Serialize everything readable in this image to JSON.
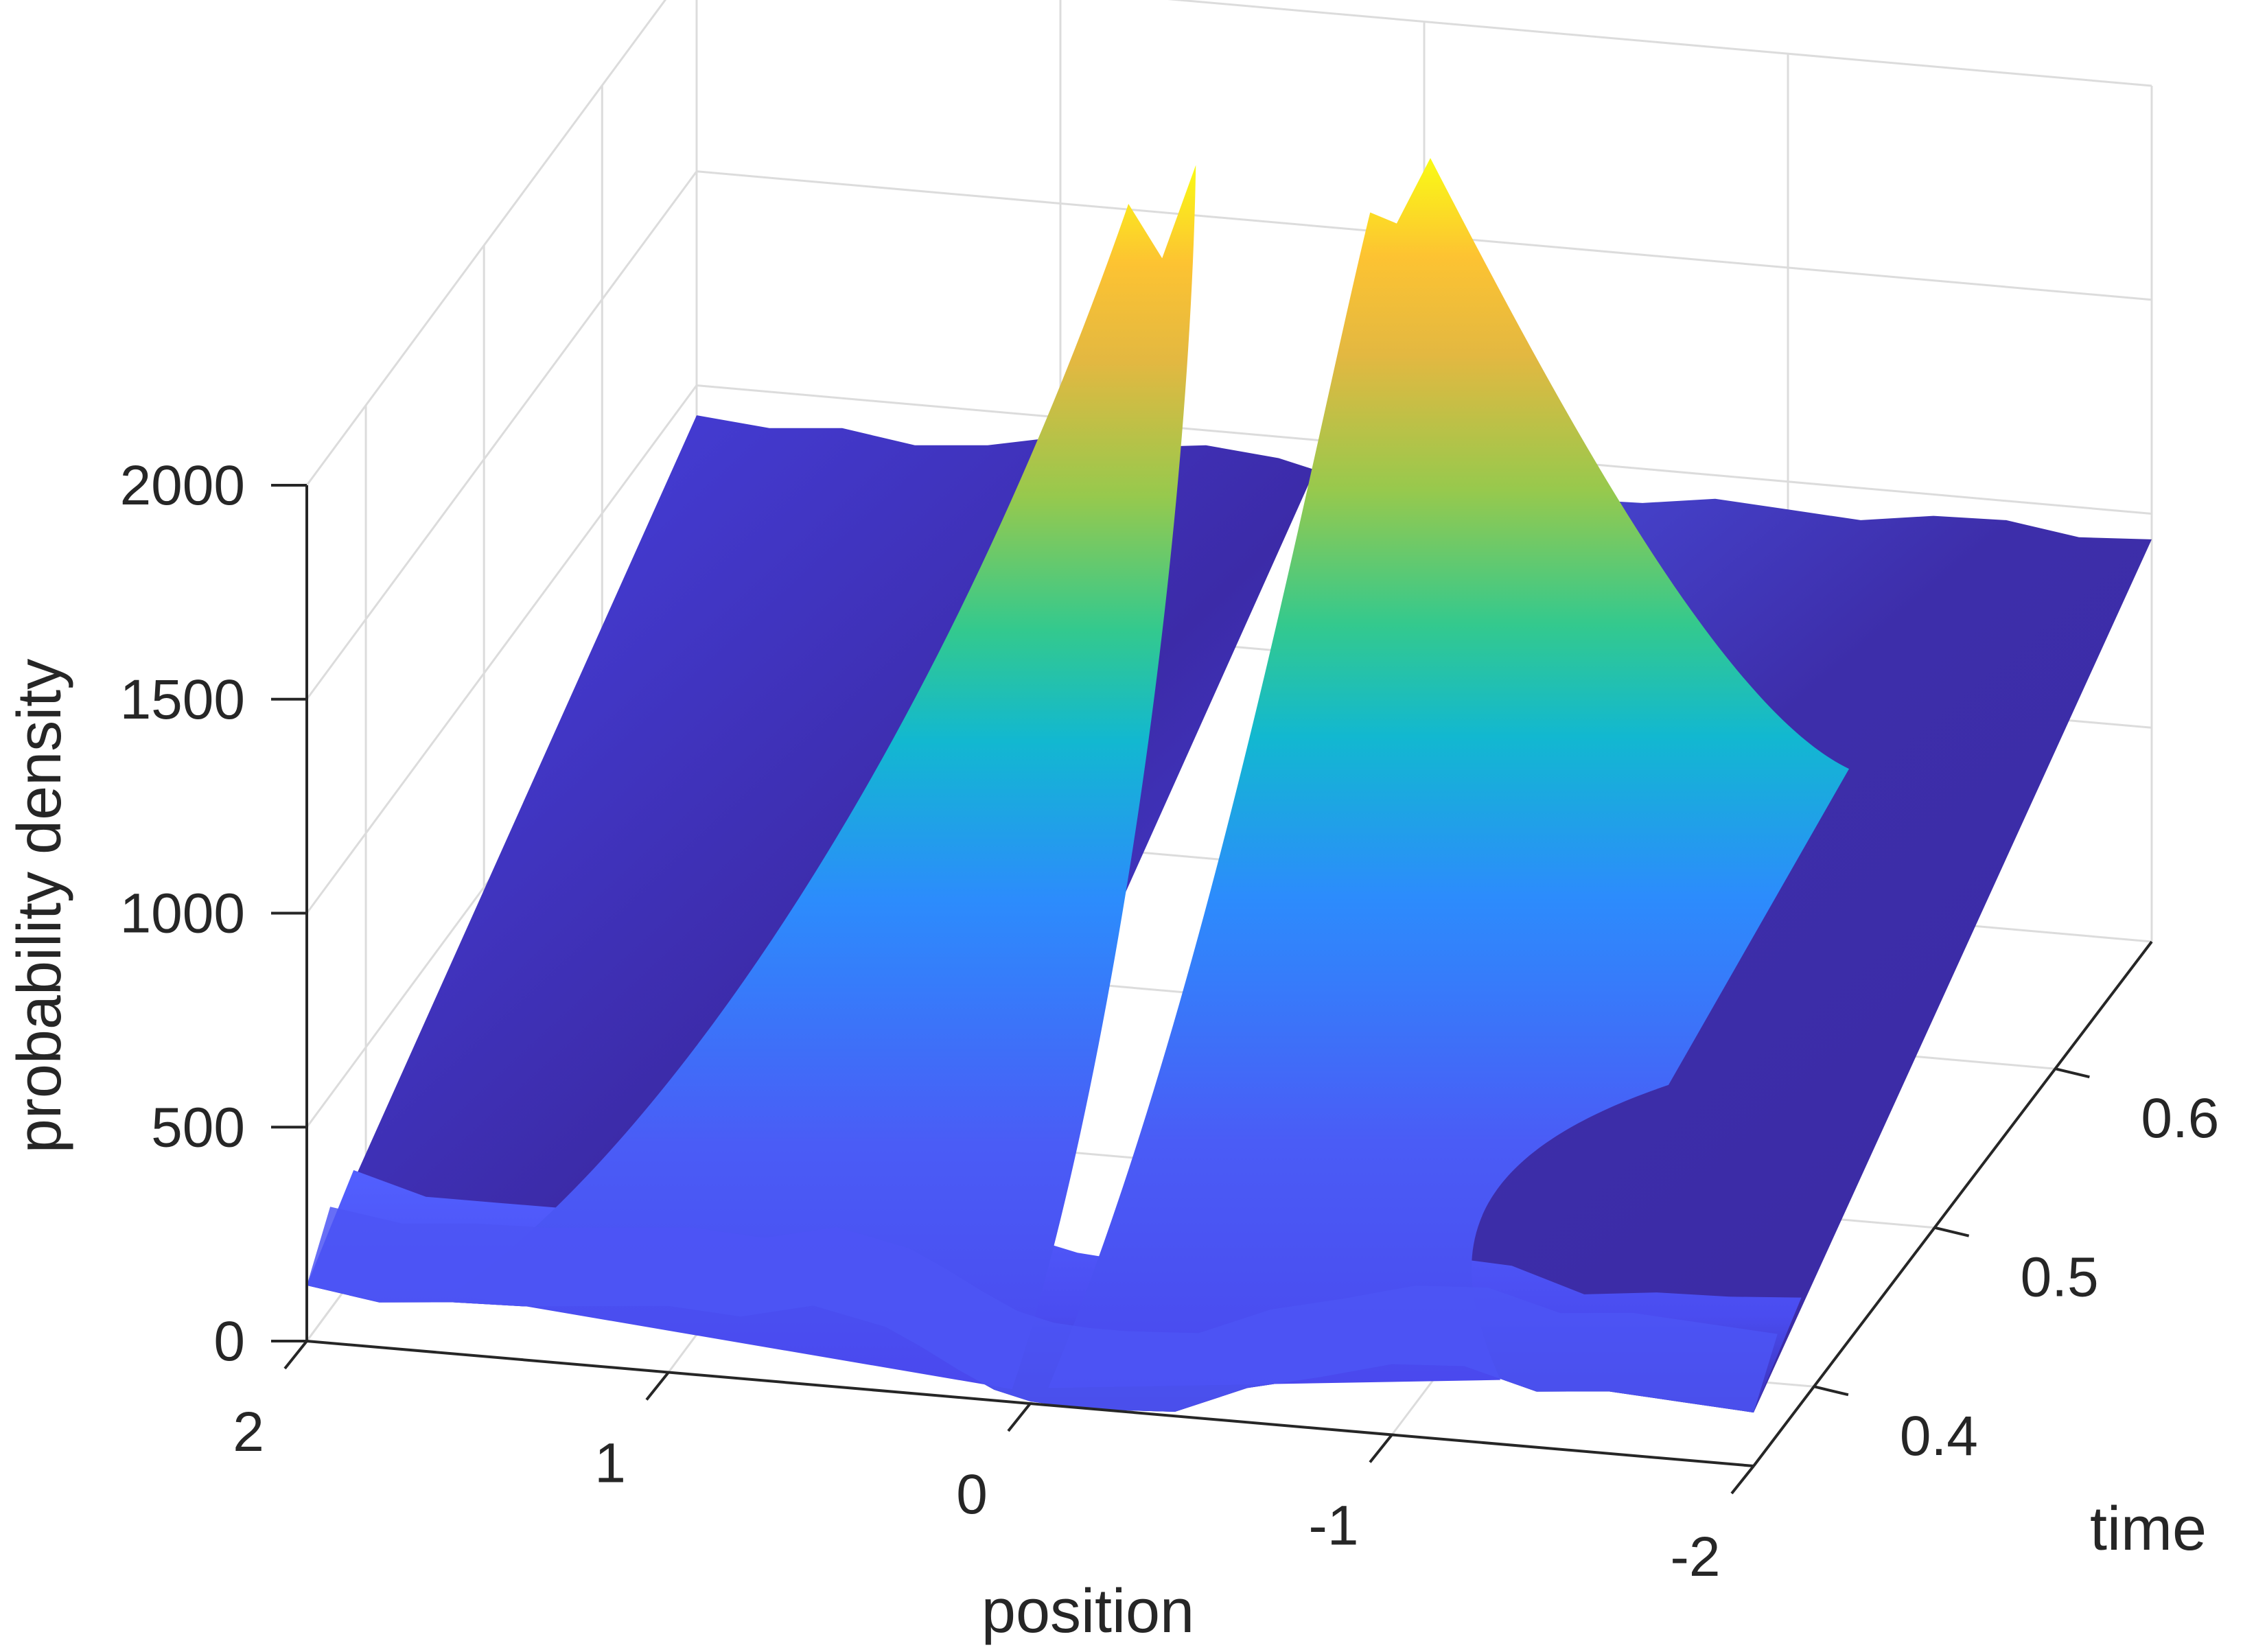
{
  "chart_data": {
    "type": "surface",
    "title": "",
    "xlabel": "position",
    "ylabel": "time",
    "zlabel": "probability density",
    "xlim": [
      -2,
      2
    ],
    "ylim": [
      0.35,
      0.68
    ],
    "zlim": [
      0,
      2000
    ],
    "x_ticks": [
      {
        "value": 2,
        "label": "2"
      },
      {
        "value": 1,
        "label": "1"
      },
      {
        "value": 0,
        "label": "0"
      },
      {
        "value": -1,
        "label": "-1"
      },
      {
        "value": -2,
        "label": "-2"
      }
    ],
    "y_ticks": [
      {
        "value": 0.4,
        "label": "0.4"
      },
      {
        "value": 0.5,
        "label": "0.5"
      },
      {
        "value": 0.6,
        "label": "0.6"
      }
    ],
    "z_ticks": [
      {
        "value": 0,
        "label": "0"
      },
      {
        "value": 500,
        "label": "500"
      },
      {
        "value": 1000,
        "label": "1000"
      },
      {
        "value": 1500,
        "label": "1500"
      },
      {
        "value": 2000,
        "label": "2000"
      }
    ],
    "grid": true,
    "colormap": [
      "#3e26a8",
      "#4743f8",
      "#2c8cfc",
      "#12b8d0",
      "#33c98e",
      "#97c94d",
      "#e3b841",
      "#fdc332",
      "#f9fb15"
    ],
    "surface_profile": {
      "x": [
        -2.0,
        -1.8,
        -1.6,
        -1.4,
        -1.2,
        -1.0,
        -0.8,
        -0.6,
        -0.4,
        -0.3,
        -0.2,
        -0.1,
        0.0,
        0.1,
        0.2,
        0.3,
        0.4,
        0.6,
        0.8,
        1.0,
        1.2,
        1.4,
        1.6,
        1.8,
        2.0
      ],
      "front_edge_z": [
        125,
        135,
        145,
        130,
        175,
        165,
        120,
        80,
        10,
        5,
        0,
        0,
        5,
        25,
        65,
        110,
        150,
        185,
        145,
        155,
        140,
        125,
        120,
        105,
        130
      ],
      "back_edge_z": [
        940,
        930,
        955,
        950,
        925,
        935,
        945,
        920,
        915,
        890,
        860,
        830,
        860,
        890,
        905,
        930,
        950,
        965,
        945,
        955,
        920,
        905,
        930,
        915,
        930
      ],
      "peaks": [
        {
          "x": 0.42,
          "time": 0.56,
          "z": 1990
        },
        {
          "x": 0.3,
          "time": 0.58,
          "z": 2015
        },
        {
          "x": -0.28,
          "time": 0.6,
          "z": 2000
        },
        {
          "x": -0.18,
          "time": 0.58,
          "z": 1940
        }
      ]
    }
  }
}
